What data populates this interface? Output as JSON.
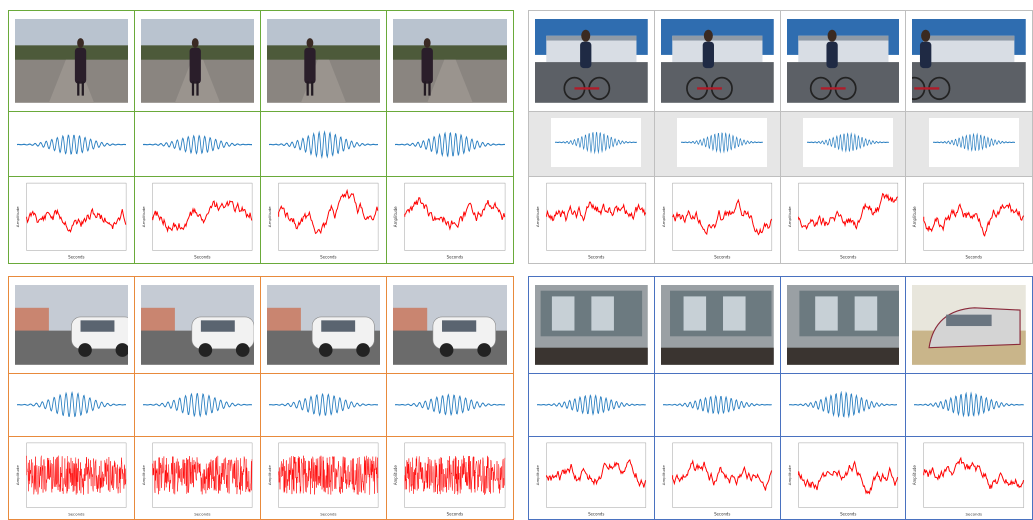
{
  "colors": {
    "pedestrian": "#6aaa3a",
    "cyclist": "#bfbfbf",
    "car": "#e88a3c",
    "tram": "#4a72c0",
    "wave": "#2a7fc1",
    "noise": "#ff0000"
  },
  "panels": [
    {
      "id": "pedestrian",
      "border": "pedestrian",
      "scene": "pedestrian",
      "grey_wave": false
    },
    {
      "id": "cyclist",
      "border": "cyclist",
      "scene": "cyclist",
      "grey_wave": true
    },
    {
      "id": "car",
      "border": "car",
      "scene": "car",
      "grey_wave": false
    },
    {
      "id": "tram",
      "border": "tram",
      "scene": "tram",
      "grey_wave": false
    }
  ],
  "axis_text": {
    "x_label": "Seconds",
    "y_label": "Amplitude"
  }
}
